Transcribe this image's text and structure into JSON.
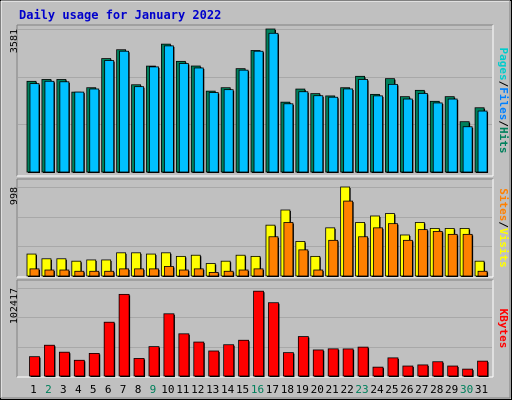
{
  "chart_data": {
    "type": "bar",
    "title": "Daily usage for January 2022",
    "categories": [
      "1",
      "2",
      "3",
      "4",
      "5",
      "6",
      "7",
      "8",
      "9",
      "10",
      "11",
      "12",
      "13",
      "14",
      "15",
      "16",
      "17",
      "18",
      "19",
      "20",
      "21",
      "22",
      "23",
      "24",
      "25",
      "26",
      "27",
      "28",
      "29",
      "30",
      "31"
    ],
    "weekend_days": [
      "2",
      "9",
      "16",
      "23",
      "30"
    ],
    "panels": [
      {
        "id": "hits_files",
        "ylim": [
          0,
          3581
        ],
        "max_label": "3581",
        "right_label": [
          "Pages",
          "/",
          "Files",
          "/",
          "Hits"
        ],
        "right_label_colors": [
          "#00cccc",
          "#000000",
          "#0080ff",
          "#000000",
          "#00805c"
        ],
        "series": [
          {
            "name": "Hits",
            "color": "#00805c",
            "values": [
              2271,
              2317,
              2317,
              2000,
              2111,
              2840,
              3062,
              2185,
              2652,
              3202,
              2771,
              2654,
              2025,
              2111,
              2588,
              3043,
              3581,
              1749,
              2077,
              1963,
              1905,
              2111,
              2396,
              1944,
              2338,
              1887,
              2045,
              1770,
              1887,
              1260,
              1609
            ]
          },
          {
            "name": "Files",
            "color": "#00c0ff",
            "values": [
              2213,
              2271,
              2259,
              2001,
              2079,
              2791,
              3024,
              2137,
              2632,
              3158,
              2716,
              2605,
              1989,
              2062,
              2550,
              3024,
              3473,
              1708,
              2010,
              1910,
              1872,
              2080,
              2317,
              1906,
              2194,
              1827,
              1967,
              1729,
              1827,
              1133,
              1526
            ]
          }
        ]
      },
      {
        "id": "sites_visits",
        "ylim": [
          0,
          998
        ],
        "max_label": "998",
        "right_label": [
          "Sites",
          "/",
          "Visits"
        ],
        "right_label_colors": [
          "#ff8000",
          "#000000",
          "#ffff00"
        ],
        "series": [
          {
            "name": "Visits",
            "color": "#ffff00",
            "values": [
              246,
              193,
              193,
              166,
              180,
              180,
              260,
              260,
              246,
              260,
              220,
              233,
              140,
              166,
              233,
              220,
              570,
              740,
              387,
              220,
              540,
              998,
              600,
              673,
              700,
              460,
              600,
              533,
              533,
              533,
              166
            ]
          },
          {
            "name": "Sites",
            "color": "#ff8000",
            "values": [
              80,
              67,
              67,
              53,
              53,
              53,
              80,
              80,
              80,
              107,
              67,
              80,
              40,
              53,
              67,
              80,
              440,
              600,
              293,
              67,
              400,
              840,
              440,
              540,
              587,
              400,
              520,
              500,
              467,
              467,
              53
            ]
          }
        ]
      },
      {
        "id": "kbytes",
        "ylim": [
          0,
          102417
        ],
        "max_label": "102417",
        "right_label": [
          "KBytes"
        ],
        "right_label_colors": [
          "#ff0000"
        ],
        "series": [
          {
            "name": "KBytes",
            "color": "#ff0000",
            "values": [
              22500,
              35800,
              27700,
              18300,
              26300,
              62600,
              95000,
              20400,
              34200,
              72400,
              49100,
              39500,
              29100,
              36400,
              41600,
              98700,
              85300,
              27200,
              45900,
              30300,
              31600,
              31500,
              33600,
              10300,
              21100,
              11600,
              12900,
              16600,
              11600,
              8000,
              17300
            ]
          }
        ]
      }
    ]
  }
}
